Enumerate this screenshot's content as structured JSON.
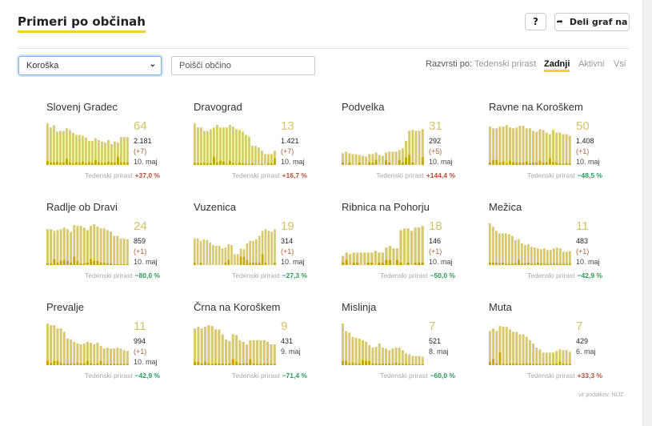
{
  "header": {
    "title": "Primeri po občinah",
    "help_label": "?",
    "share_label": "Deli graf na",
    "share_icon": "share-arrow-icon"
  },
  "filters": {
    "region_selected": "Koroška",
    "search_placeholder": "Poišči občino",
    "sort_label": "Razvrsti po:",
    "sort_options": [
      "Tedenski prirast",
      "Zadnji",
      "Aktivni",
      "Vsi"
    ],
    "sort_active": "Zadnji"
  },
  "colors": {
    "bar": "#d8c870",
    "bar_recent": "#c4a800",
    "accent": "#f5d229",
    "positive_growth": "#b0503a",
    "negative_growth": "#2a9a5a"
  },
  "growth_label": "Tedenski prirast",
  "source": "vir podatkov: NIJZ",
  "cards": [
    {
      "name": "Slovenj Gradec",
      "active": "64",
      "total": "2.181",
      "delta": "(+7)",
      "date": "10. maj",
      "growth": "+37,0 %",
      "dir": "pos",
      "bars": [
        1.0,
        0.9,
        0.95,
        0.8,
        0.82,
        0.82,
        0.88,
        0.84,
        0.77,
        0.72,
        0.72,
        0.7,
        0.66,
        0.58,
        0.58,
        0.64,
        0.6,
        0.56,
        0.54,
        0.6,
        0.5,
        0.56,
        0.54,
        0.67,
        0.67,
        0.67
      ],
      "recent": [
        0.1,
        0.06,
        0.06,
        0.08,
        0.05,
        0.06,
        0.15,
        0.06,
        0.04,
        0.06,
        0.05,
        0.08,
        0.04,
        0.06,
        0.05,
        0.12,
        0.06,
        0.04,
        0.05,
        0.08,
        0.06,
        0.06,
        0.2,
        0.06,
        0.06,
        0.06
      ]
    },
    {
      "name": "Dravograd",
      "active": "13",
      "total": "1.421",
      "delta": "(+7)",
      "date": "10. maj",
      "growth": "+16,7 %",
      "dir": "pos",
      "bars": [
        1.0,
        0.9,
        0.9,
        0.82,
        0.82,
        0.86,
        0.9,
        0.96,
        0.9,
        0.9,
        0.9,
        0.96,
        0.92,
        0.86,
        0.84,
        0.8,
        0.72,
        0.68,
        0.46,
        0.46,
        0.42,
        0.34,
        0.26,
        0.26,
        0.26,
        0.34
      ],
      "recent": [
        0.05,
        0.05,
        0.04,
        0.05,
        0.04,
        0.04,
        0.2,
        0.05,
        0.1,
        0.08,
        0.02,
        0.1,
        0.04,
        0.02,
        0.05,
        0.04,
        0.03,
        0.02,
        0.04,
        0.02,
        0.01,
        0.02,
        0.0,
        0.04,
        0.04,
        0.16
      ]
    },
    {
      "name": "Podvelka",
      "active": "31",
      "total": "292",
      "delta": "(+5)",
      "date": "10. maj",
      "growth": "+144,4 %",
      "dir": "pos",
      "bars": [
        0.28,
        0.32,
        0.28,
        0.26,
        0.26,
        0.24,
        0.22,
        0.2,
        0.26,
        0.26,
        0.3,
        0.24,
        0.22,
        0.3,
        0.32,
        0.32,
        0.32,
        0.36,
        0.4,
        0.58,
        0.82,
        0.84,
        0.82,
        0.82,
        0.86
      ],
      "recent": [
        0.06,
        0.0,
        0.06,
        0.0,
        0.0,
        0.06,
        0.0,
        0.0,
        0.06,
        0.06,
        0.12,
        0.0,
        0.0,
        0.12,
        0.06,
        0.0,
        0.0,
        0.12,
        0.06,
        0.18,
        0.24,
        0.06,
        0.0,
        0.0,
        0.18
      ]
    },
    {
      "name": "Ravne na Koroškem",
      "active": "50",
      "total": "1.408",
      "delta": "(+1)",
      "date": "10. maj",
      "growth": "−48,5 %",
      "dir": "neg",
      "bars": [
        0.92,
        0.88,
        0.88,
        0.92,
        0.92,
        0.96,
        0.9,
        0.88,
        0.9,
        0.94,
        0.94,
        0.88,
        0.88,
        0.82,
        0.8,
        0.86,
        0.84,
        0.78,
        0.74,
        0.84,
        0.78,
        0.78,
        0.74,
        0.74,
        0.7
      ],
      "recent": [
        0.06,
        0.12,
        0.12,
        0.06,
        0.08,
        0.04,
        0.1,
        0.06,
        0.06,
        0.06,
        0.06,
        0.08,
        0.04,
        0.06,
        0.06,
        0.1,
        0.06,
        0.06,
        0.16,
        0.06,
        0.06,
        0.04,
        0.03,
        0.04,
        0.03
      ]
    },
    {
      "name": "Radlje ob Dravi",
      "active": "24",
      "total": "859",
      "delta": "(+1)",
      "date": "10. maj",
      "growth": "−80,0 %",
      "dir": "neg",
      "bars": [
        0.86,
        0.86,
        0.82,
        0.84,
        0.86,
        0.9,
        0.86,
        0.8,
        0.96,
        0.94,
        0.94,
        0.9,
        0.84,
        0.94,
        0.98,
        0.92,
        0.88,
        0.88,
        0.84,
        0.8,
        0.7,
        0.7,
        0.64,
        0.64,
        0.62
      ],
      "recent": [
        0.04,
        0.04,
        0.14,
        0.06,
        0.1,
        0.12,
        0.1,
        0.06,
        0.2,
        0.1,
        0.04,
        0.04,
        0.06,
        0.14,
        0.1,
        0.1,
        0.06,
        0.06,
        0.04,
        0.04,
        0.02,
        0.02,
        0.02,
        0.02,
        0.02
      ]
    },
    {
      "name": "Vuzenica",
      "active": "19",
      "total": "314",
      "delta": "(+1)",
      "date": "10. maj",
      "growth": "−27,3 %",
      "dir": "neg",
      "bars": [
        0.64,
        0.64,
        0.58,
        0.62,
        0.6,
        0.54,
        0.48,
        0.46,
        0.46,
        0.4,
        0.42,
        0.5,
        0.48,
        0.26,
        0.26,
        0.4,
        0.38,
        0.52,
        0.58,
        0.58,
        0.62,
        0.7,
        0.82,
        0.86,
        0.82,
        0.8,
        0.86
      ],
      "recent": [
        0.06,
        0.0,
        0.06,
        0.0,
        0.0,
        0.0,
        0.0,
        0.0,
        0.0,
        0.0,
        0.06,
        0.12,
        0.0,
        0.0,
        0.0,
        0.2,
        0.2,
        0.12,
        0.06,
        0.06,
        0.06,
        0.06,
        0.26,
        0.06,
        0.0,
        0.0,
        0.06
      ]
    },
    {
      "name": "Ribnica na Pohorju",
      "active": "18",
      "total": "146",
      "delta": "(+1)",
      "date": "10. maj",
      "growth": "−50,0 %",
      "dir": "neg",
      "bars": [
        0.22,
        0.3,
        0.26,
        0.3,
        0.3,
        0.3,
        0.3,
        0.3,
        0.3,
        0.34,
        0.3,
        0.3,
        0.42,
        0.46,
        0.4,
        0.4,
        0.84,
        0.88,
        0.88,
        0.82,
        0.9,
        0.9,
        0.94
      ],
      "recent": [
        0.06,
        0.12,
        0.0,
        0.06,
        0.06,
        0.0,
        0.0,
        0.06,
        0.06,
        0.0,
        0.06,
        0.06,
        0.12,
        0.12,
        0.0,
        0.12,
        0.06,
        0.0,
        0.06,
        0.0,
        0.06,
        0.06,
        0.06
      ]
    },
    {
      "name": "Mežica",
      "active": "11",
      "total": "483",
      "delta": "(+1)",
      "date": "10. maj",
      "growth": "−42,9 %",
      "dir": "neg",
      "bars": [
        1.0,
        0.92,
        0.82,
        0.76,
        0.76,
        0.76,
        0.74,
        0.7,
        0.6,
        0.62,
        0.52,
        0.48,
        0.5,
        0.44,
        0.42,
        0.4,
        0.38,
        0.4,
        0.36,
        0.36,
        0.4,
        0.42,
        0.4,
        0.32,
        0.32,
        0.34
      ],
      "recent": [
        0.06,
        0.06,
        0.06,
        0.04,
        0.06,
        0.03,
        0.03,
        0.03,
        0.04,
        0.12,
        0.04,
        0.04,
        0.06,
        0.03,
        0.03,
        0.06,
        0.04,
        0.03,
        0.03,
        0.03,
        0.04,
        0.03,
        0.03,
        0.03,
        0.03,
        0.03
      ]
    },
    {
      "name": "Prevalje",
      "active": "11",
      "total": "994",
      "delta": "(+1)",
      "date": "10. maj",
      "growth": "−42,9 %",
      "dir": "neg",
      "bars": [
        1.0,
        0.96,
        0.96,
        0.88,
        0.88,
        0.8,
        0.64,
        0.62,
        0.56,
        0.52,
        0.5,
        0.52,
        0.56,
        0.54,
        0.5,
        0.54,
        0.46,
        0.4,
        0.42,
        0.4,
        0.4,
        0.42,
        0.4,
        0.36,
        0.34
      ],
      "recent": [
        0.1,
        0.06,
        0.1,
        0.1,
        0.06,
        0.03,
        0.04,
        0.04,
        0.03,
        0.06,
        0.04,
        0.04,
        0.1,
        0.04,
        0.03,
        0.04,
        0.1,
        0.03,
        0.03,
        0.03,
        0.03,
        0.03,
        0.03,
        0.03,
        0.03
      ]
    },
    {
      "name": "Črna na Koroškem",
      "active": "9",
      "total": "431",
      "delta": "",
      "date": "9. maj",
      "growth": "−71,4 %",
      "dir": "neg",
      "bars": [
        0.88,
        0.92,
        0.88,
        0.92,
        0.96,
        0.94,
        0.86,
        0.86,
        0.74,
        0.62,
        0.58,
        0.74,
        0.72,
        0.6,
        0.56,
        0.5,
        0.6,
        0.6,
        0.6,
        0.6,
        0.6,
        0.56,
        0.5,
        0.5
      ],
      "recent": [
        0.08,
        0.08,
        0.04,
        0.08,
        0.04,
        0.03,
        0.04,
        0.04,
        0.04,
        0.03,
        0.04,
        0.14,
        0.08,
        0.04,
        0.04,
        0.04,
        0.14,
        0.04,
        0.03,
        0.03,
        0.04,
        0.04,
        0.03,
        0.03
      ]
    },
    {
      "name": "Mislinja",
      "active": "7",
      "total": "521",
      "delta": "",
      "date": "8. maj",
      "growth": "−60,0 %",
      "dir": "neg",
      "bars": [
        1.0,
        0.82,
        0.78,
        0.68,
        0.66,
        0.64,
        0.6,
        0.56,
        0.48,
        0.42,
        0.44,
        0.52,
        0.42,
        0.4,
        0.36,
        0.4,
        0.42,
        0.42,
        0.36,
        0.28,
        0.26,
        0.22,
        0.22,
        0.22,
        0.2
      ],
      "recent": [
        0.1,
        0.1,
        0.04,
        0.06,
        0.04,
        0.04,
        0.12,
        0.1,
        0.1,
        0.04,
        0.04,
        0.03,
        0.04,
        0.03,
        0.04,
        0.03,
        0.06,
        0.04,
        0.03,
        0.03,
        0.02,
        0.02,
        0.02,
        0.02,
        0.02
      ]
    },
    {
      "name": "Muta",
      "active": "7",
      "total": "429",
      "delta": "",
      "date": "6. maj",
      "growth": "+33,3 %",
      "dir": "pos",
      "bars": [
        0.82,
        0.88,
        0.82,
        0.94,
        0.92,
        0.92,
        0.86,
        0.8,
        0.8,
        0.74,
        0.74,
        0.68,
        0.6,
        0.52,
        0.42,
        0.38,
        0.3,
        0.3,
        0.3,
        0.3,
        0.34,
        0.38,
        0.36,
        0.36,
        0.32
      ],
      "recent": [
        0.08,
        0.14,
        0.04,
        0.3,
        0.04,
        0.03,
        0.04,
        0.04,
        0.04,
        0.03,
        0.04,
        0.04,
        0.04,
        0.03,
        0.03,
        0.03,
        0.03,
        0.03,
        0.03,
        0.03,
        0.04,
        0.08,
        0.04,
        0.03,
        0.03
      ]
    }
  ]
}
